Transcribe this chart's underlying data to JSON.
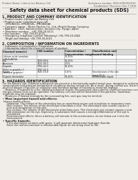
{
  "bg_color": "#f0ede8",
  "header_left": "Product Name: Lithium Ion Battery Cell",
  "header_right_line1": "Substance number: SDS-LIION-001010",
  "header_right_line2": "Established / Revision: Dec.7.2016",
  "title": "Safety data sheet for chemical products (SDS)",
  "section1_title": "1. PRODUCT AND COMPANY IDENTIFICATION",
  "section1_lines": [
    "• Product name: Lithium Ion Battery Cell",
    "• Product code: Cylindrical-type cell",
    "   (IFR18650U, IFR18650L, IFR18650A)",
    "• Company name:   Baren Electric Co., Ltd., Muteki Energy Company",
    "• Address:   2021, Kamimachien, Sumoto-City, Hyogo, Japan",
    "• Telephone number:   +81-799-20-4111",
    "• Fax number:   +81-799-20-4121",
    "• Emergency telephone number (Weekday) +81-799-20-2662",
    "   (Night and holiday) +81-799-20-4101"
  ],
  "section2_title": "2. COMPOSITION / INFORMATION ON INGREDIENTS",
  "section2_sub1": "• Substance or preparation: Preparation",
  "section2_sub2": "• Information about the chemical nature of product:",
  "table_col_headers": [
    "Chemical name(s)",
    "CAS number",
    "Concentration /\nConcentration range",
    "Classification and\nhazard labeling"
  ],
  "table_rows": [
    [
      "Lithium oxide tantalate\n(LiMnCoNiO4)",
      "-",
      "30-40%",
      "-"
    ],
    [
      "Iron",
      "7439-89-6",
      "15-25%",
      "-"
    ],
    [
      "Aluminum",
      "7429-90-5",
      "2-5%",
      "-"
    ],
    [
      "Graphite\n(flake or graphite-l)\n(artificial graphite)",
      "7782-42-5\n7782-42-5",
      "10-25%",
      "-"
    ],
    [
      "Copper",
      "7440-50-8",
      "5-15%",
      "Sensitization of the skin\ngroup No.2"
    ],
    [
      "Organic electrolyte",
      "-",
      "10-20%",
      "Inflammable liquid"
    ]
  ],
  "section3_title": "3. HAZARDS IDENTIFICATION",
  "section3_lines": [
    "For the battery cell, chemical substances are stored in a hermetically-sealed metal case, designed to withstand",
    "temperatures and pressure-temperature conditions during normal use. As a result, during normal use, there is no",
    "physical danger of ignition or explosion and therefore danger of hazardous materials leakage.",
    "   However, if exposed to a fire, added mechanical shocks, decomposed, when electro-chemical reactions occur,",
    "the gas release vent can be operated. The battery cell case will be breached of fire-particles, hazardous",
    "materials may be released.",
    "   Moreover, if heated strongly by the surrounding fire, soot gas may be emitted."
  ],
  "section3_human_title": "• Most important hazard and effects:",
  "section3_human_lines": [
    "Human health effects:",
    "    Inhalation: The release of the electrolyte has an anesthesia action and stimulates in respiratory tract.",
    "    Skin contact: The release of the electrolyte stimulates a skin. The electrolyte skin contact causes a",
    "    sore and stimulation on the skin.",
    "    Eye contact: The release of the electrolyte stimulates eyes. The electrolyte eye contact causes a sore",
    "    and stimulation on the eye. Especially, a substance that causes a strong inflammation of the eye is",
    "    considered.",
    "    Environmental effects: Since a battery cell remains in the environment, do not throw out it into the",
    "    environment."
  ],
  "section3_specific_title": "• Specific hazards:",
  "section3_specific_lines": [
    "    If the electrolyte contacts with water, it will generate detrimental hydrogen fluoride.",
    "    Since the real environment is inflammable liquid, do not bring close to fire."
  ]
}
